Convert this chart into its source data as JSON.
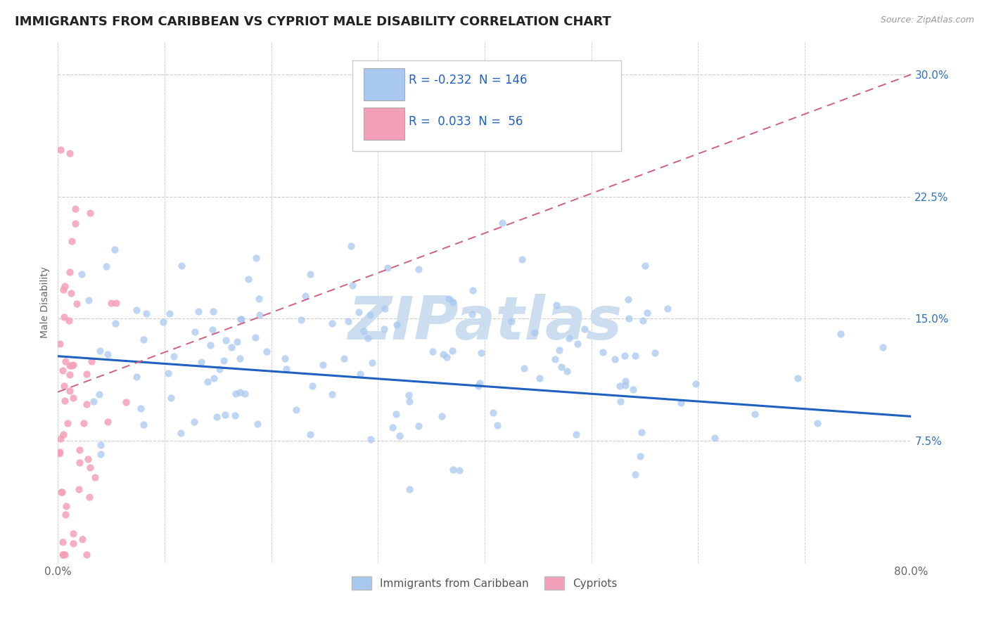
{
  "title": "IMMIGRANTS FROM CARIBBEAN VS CYPRIOT MALE DISABILITY CORRELATION CHART",
  "source": "Source: ZipAtlas.com",
  "ylabel": "Male Disability",
  "legend_label1": "Immigrants from Caribbean",
  "legend_label2": "Cypriots",
  "R1": -0.232,
  "N1": 146,
  "R2": 0.033,
  "N2": 56,
  "color1": "#a8c8f0",
  "color2": "#f4a0b8",
  "trendline1_color": "#2060c0",
  "trendline2_color": "#d06080",
  "xmin": 0.0,
  "xmax": 0.8,
  "ymin": 0.0,
  "ymax": 0.32,
  "yticks": [
    0.075,
    0.15,
    0.225,
    0.3
  ],
  "ytick_labels": [
    "7.5%",
    "15.0%",
    "22.5%",
    "30.0%"
  ],
  "watermark": "ZIPatlas",
  "watermark_color": "#ccddf0",
  "background_color": "#ffffff",
  "grid_color": "#cccccc",
  "title_color": "#222222",
  "title_fontsize": 13,
  "label_fontsize": 10,
  "tick_fontsize": 11,
  "axis_tick_color": "#3070c0",
  "xtick_color": "#666666",
  "scatter1_size": 55,
  "scatter2_size": 55
}
